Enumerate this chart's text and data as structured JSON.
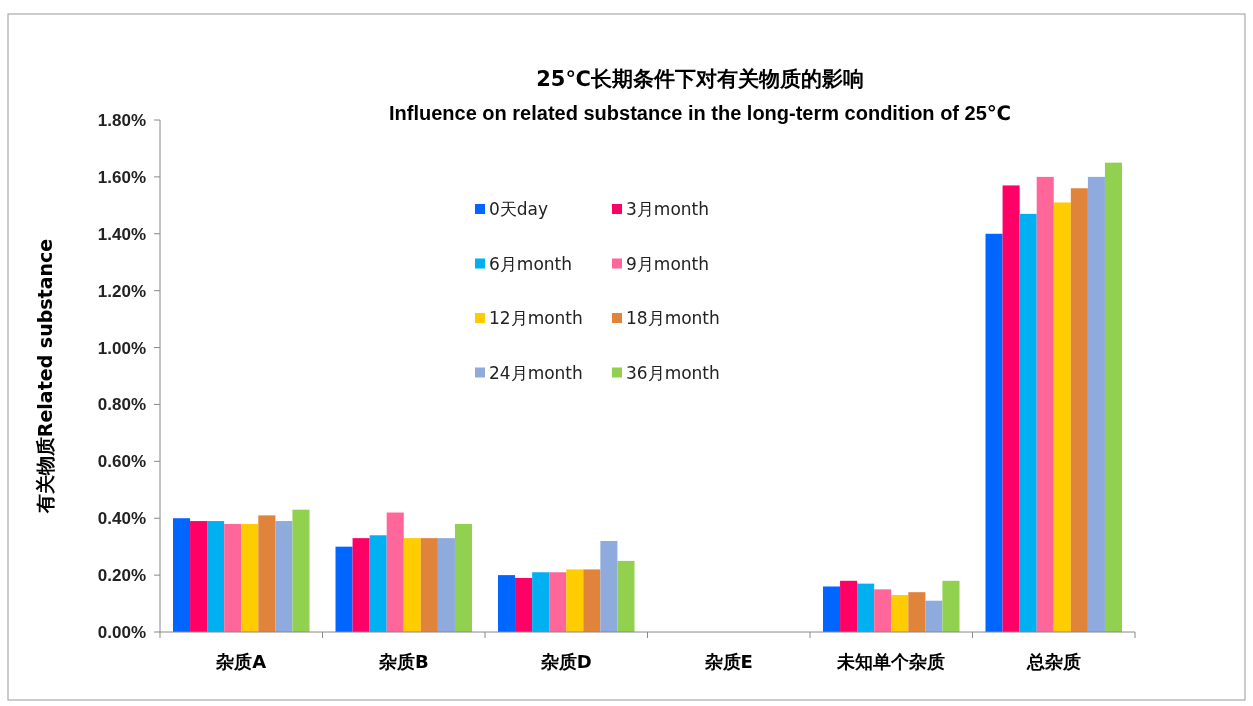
{
  "chart_data": {
    "type": "bar",
    "title": "25℃长期条件下对有关物质的影响",
    "subtitle": "Influence on related substance in the long-term condition of 25℃",
    "ylabel": "有关物质Related substance",
    "categories": [
      "杂质A",
      "杂质B",
      "杂质D",
      "杂质E",
      "未知单个杂质",
      "总杂质"
    ],
    "series": [
      {
        "name": "0天day",
        "color": "#0066ff",
        "values": [
          0.4,
          0.3,
          0.2,
          null,
          0.16,
          1.4
        ]
      },
      {
        "name": "3月month",
        "color": "#ff0066",
        "values": [
          0.39,
          0.33,
          0.19,
          null,
          0.18,
          1.57
        ]
      },
      {
        "name": "6月month",
        "color": "#00b0f0",
        "values": [
          0.39,
          0.34,
          0.21,
          null,
          0.17,
          1.47
        ]
      },
      {
        "name": "9月month",
        "color": "#ff6699",
        "values": [
          0.38,
          0.42,
          0.21,
          null,
          0.15,
          1.6
        ]
      },
      {
        "name": "12月month",
        "color": "#ffcc00",
        "values": [
          0.38,
          0.33,
          0.22,
          null,
          0.13,
          1.51
        ]
      },
      {
        "name": "18月month",
        "color": "#e0843c",
        "values": [
          0.41,
          0.33,
          0.22,
          null,
          0.14,
          1.56
        ]
      },
      {
        "name": "24月month",
        "color": "#8faadc",
        "values": [
          0.39,
          0.33,
          0.32,
          null,
          0.11,
          1.6
        ]
      },
      {
        "name": "36月month",
        "color": "#92d050",
        "values": [
          0.43,
          0.38,
          0.25,
          null,
          0.18,
          1.65
        ]
      }
    ],
    "ylim": [
      0,
      1.8
    ],
    "yticks": [
      {
        "value": 0,
        "label": "0.00%"
      },
      {
        "value": 0.2,
        "label": "0.20%"
      },
      {
        "value": 0.4,
        "label": "0.40%"
      },
      {
        "value": 0.6,
        "label": "0.60%"
      },
      {
        "value": 0.8,
        "label": "0.80%"
      },
      {
        "value": 1.0,
        "label": "1.00%"
      },
      {
        "value": 1.2,
        "label": "1.20%"
      },
      {
        "value": 1.4,
        "label": "1.40%"
      },
      {
        "value": 1.6,
        "label": "1.60%"
      },
      {
        "value": 1.8,
        "label": "1.80%"
      }
    ],
    "legend": "top",
    "grid": false
  }
}
